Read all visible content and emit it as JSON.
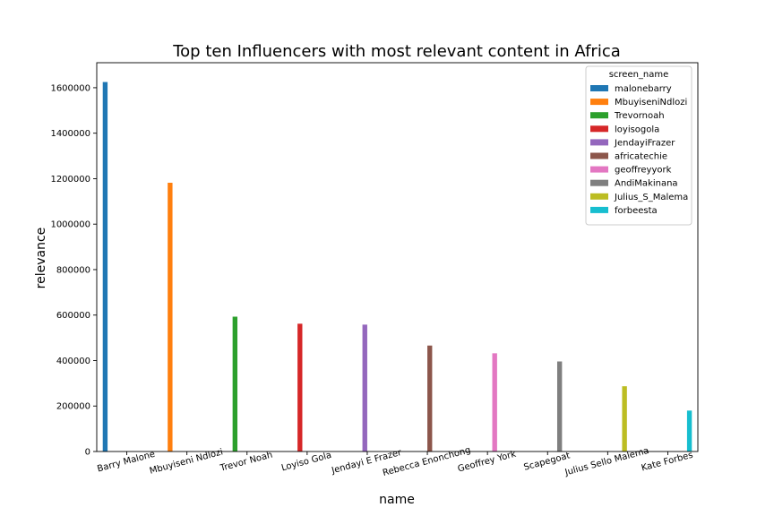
{
  "chart_data": {
    "type": "bar",
    "title": "Top ten Influencers with most relevant content in Africa",
    "xlabel": "name",
    "ylabel": "relevance",
    "categories": [
      "Barry Malone",
      "Mbuyiseni Ndlozi",
      "Trevor Noah",
      "Loyiso Gola",
      "Jendayi E Frazer",
      "Rebecca Enonchong",
      "Geoffrey York",
      "Scapegoat",
      "Julius Sello Malema",
      "Kate Forbes"
    ],
    "yticks": [
      0,
      200000,
      400000,
      600000,
      800000,
      1000000,
      1200000,
      1400000,
      1600000
    ],
    "ylim": [
      0,
      1710000
    ],
    "grid": false,
    "legend": {
      "title": "screen_name",
      "placement": "top-right"
    },
    "series": [
      {
        "name": "malonebarry",
        "color": "#1f77b4",
        "category_index": 0,
        "value": 1625000
      },
      {
        "name": "MbuyiseniNdlozi",
        "color": "#ff7f0e",
        "category_index": 1,
        "value": 1182000
      },
      {
        "name": "Trevornoah",
        "color": "#2ca02c",
        "category_index": 2,
        "value": 593000
      },
      {
        "name": "loyisogola",
        "color": "#d62728",
        "category_index": 3,
        "value": 562000
      },
      {
        "name": "JendayiFrazer",
        "color": "#9467bd",
        "category_index": 4,
        "value": 558000
      },
      {
        "name": "africatechie",
        "color": "#8c564b",
        "category_index": 5,
        "value": 466000
      },
      {
        "name": "geoffreyyork",
        "color": "#e377c2",
        "category_index": 6,
        "value": 432000
      },
      {
        "name": "AndiMakinana",
        "color": "#7f7f7f",
        "category_index": 7,
        "value": 396000
      },
      {
        "name": "Julius_S_Malema",
        "color": "#bcbd22",
        "category_index": 8,
        "value": 287000
      },
      {
        "name": "forbeesta",
        "color": "#17becf",
        "category_index": 9,
        "value": 180000
      }
    ]
  }
}
